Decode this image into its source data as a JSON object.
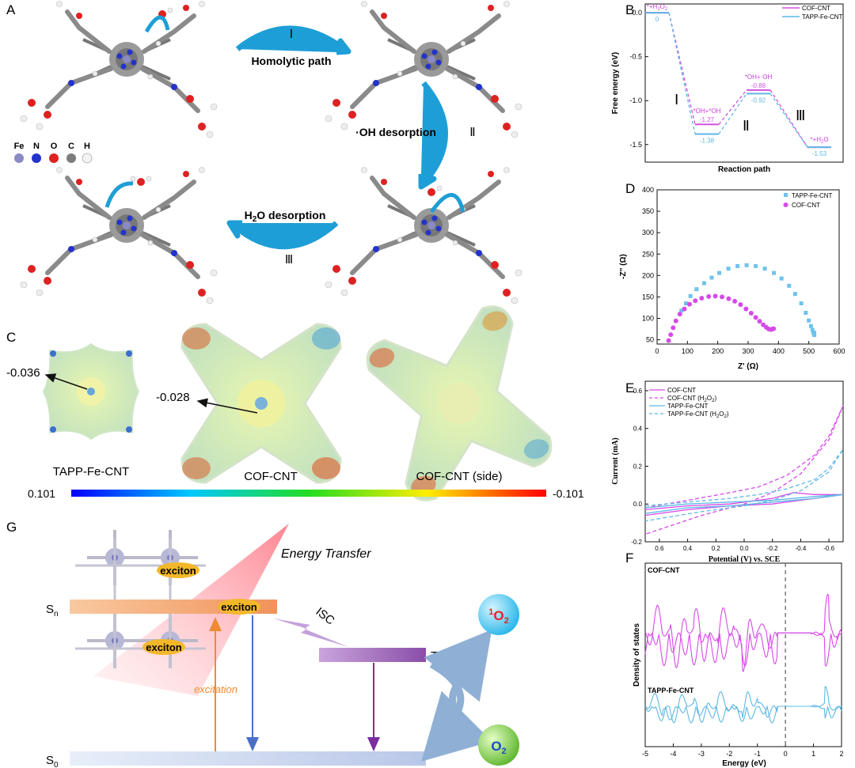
{
  "panel_letters": {
    "a": "A",
    "b": "B",
    "c": "C",
    "d": "D",
    "e": "E",
    "f": "F",
    "g": "G"
  },
  "panel_a": {
    "step1_numeral": "Ⅰ",
    "step1_label": "Homolytic path",
    "step2_numeral": "Ⅱ",
    "step2_label": "·OH desorption",
    "step3_numeral": "Ⅲ",
    "step3_label": "H",
    "step3_label_sub": "2",
    "step3_label_rest": "O desorption",
    "atom_legend": [
      {
        "symbol": "Fe",
        "color": "#8a8ac4"
      },
      {
        "symbol": "N",
        "color": "#2233cc"
      },
      {
        "symbol": "O",
        "color": "#dd2222"
      },
      {
        "symbol": "C",
        "color": "#7c7c7c"
      },
      {
        "symbol": "H",
        "color": "#f2f2f2"
      }
    ]
  },
  "panel_c": {
    "value_left": "-0.036",
    "value_mid": "-0.028",
    "label_left": "TAPP-Fe-CNT",
    "label_mid": "COF-CNT",
    "label_right": "COF-CNT (side)",
    "scale_min": "0.101",
    "scale_max": "-0.101"
  },
  "panel_g": {
    "sn": "S",
    "sn_sub": "n",
    "s0": "S",
    "s0_sub": "0",
    "tn": "T",
    "tn_sub": "n",
    "energy_transfer": "Energy Transfer",
    "isc": "ISC",
    "exciton": "exciton",
    "excitation": "excitation",
    "singlet_o2_sup": "1",
    "o2": "O",
    "o2_sub": "2",
    "colors": {
      "singlet": "#3ec7ef",
      "triplet": "#6cc23a",
      "sn_bar": "#f2a36b",
      "tn_bar": "#9b5fb5",
      "s0_bar": "#c8d4ee"
    }
  },
  "chart_data": [
    {
      "type": "line",
      "panel": "B",
      "xlabel": "Reaction path",
      "ylabel": "Free energy (eV)",
      "ylim": [
        -1.7,
        0.1
      ],
      "yticks": [
        "0.0",
        "-0.5",
        "-1.0",
        "-1.5"
      ],
      "step_numerals": [
        "Ⅰ",
        "Ⅱ",
        "Ⅲ"
      ],
      "legend_position": "top-right",
      "states": [
        {
          "label": "*+H2O2",
          "label_main": "*+H",
          "label_sub": "2",
          "label_o": "O",
          "label_sub2": "2"
        },
        {
          "label": "*OH+*OH",
          "label_main": "*OH+*OH"
        },
        {
          "label": "*OH+·OH",
          "label_main": "*OH+·OH"
        },
        {
          "label": "*+H2O",
          "label_main": "*+H",
          "label_sub": "2",
          "label_o": "O"
        }
      ],
      "series": [
        {
          "name": "COF-CNT",
          "color": "#d450e0",
          "values": [
            0,
            -1.27,
            -0.88,
            -1.53
          ],
          "value_labels": [
            "",
            "-1.27",
            "-0.88",
            ""
          ]
        },
        {
          "name": "TAPP-Fe-CNT",
          "color": "#5fb8e4",
          "values": [
            0,
            -1.38,
            -0.92,
            -1.53
          ],
          "value_labels": [
            "0",
            "-1.38",
            "-0.92",
            "-1.53"
          ]
        }
      ]
    },
    {
      "type": "scatter",
      "panel": "D",
      "xlabel": "Z' (Ω)",
      "ylabel": "-Z'' (Ω)",
      "xlim": [
        0,
        600
      ],
      "ylim": [
        40,
        400
      ],
      "xticks": [
        0,
        100,
        200,
        300,
        400,
        500,
        600
      ],
      "yticks": [
        50,
        100,
        150,
        200,
        250,
        300,
        350,
        400
      ],
      "legend_position": "top-right",
      "series": [
        {
          "name": "TAPP-Fe-CNT",
          "color": "#6ec3ea",
          "marker": "square",
          "x": [
            80,
            95,
            110,
            130,
            155,
            180,
            205,
            235,
            265,
            295,
            325,
            355,
            385,
            410,
            435,
            455,
            475,
            490,
            500,
            507,
            512,
            515,
            517,
            518,
            518
          ],
          "y": [
            118,
            135,
            152,
            168,
            182,
            195,
            206,
            216,
            222,
            224,
            222,
            216,
            206,
            193,
            176,
            157,
            135,
            113,
            95,
            82,
            73,
            67,
            63,
            61,
            66
          ]
        },
        {
          "name": "COF-CNT",
          "color": "#d64ae8",
          "marker": "circle",
          "x": [
            38,
            45,
            53,
            62,
            75,
            90,
            107,
            126,
            147,
            170,
            192,
            214,
            236,
            256,
            275,
            293,
            310,
            325,
            338,
            350,
            360,
            368,
            375,
            380,
            384
          ],
          "y": [
            48,
            62,
            78,
            94,
            110,
            122,
            133,
            141,
            147,
            151,
            152,
            150,
            146,
            140,
            132,
            122,
            112,
            102,
            93,
            85,
            79,
            75,
            74,
            75,
            76
          ]
        }
      ]
    },
    {
      "type": "line",
      "panel": "E",
      "xlabel": "Potential (V) vs. SCE",
      "ylabel": "Current (mA)",
      "xlim": [
        0.7,
        -0.7
      ],
      "ylim": [
        -0.2,
        0.65
      ],
      "xticks": [
        "0.6",
        "0.4",
        "0.2",
        "0.0",
        "-0.2",
        "-0.4",
        "-0.6"
      ],
      "yticks": [
        "0.6",
        "0.4",
        "0.2",
        "0.0",
        "-0.2"
      ],
      "legend_position": "top-left",
      "series": [
        {
          "name": "COF-CNT",
          "color": "#d64ae8",
          "dash": "solid",
          "x": [
            0.7,
            0.4,
            0.1,
            -0.2,
            -0.35,
            -0.5,
            -0.7,
            -0.5,
            -0.2,
            0.1,
            0.4,
            0.7
          ],
          "y": [
            -0.03,
            -0.01,
            0.0,
            0.03,
            0.06,
            0.05,
            0.05,
            0.03,
            0.0,
            -0.01,
            -0.03,
            -0.06
          ]
        },
        {
          "name": "COF-CNT (H2O2)",
          "name_main": "COF-CNT (H",
          "name_sub": "2",
          "name_o": "O",
          "name_sub2": "2",
          "name_end": ")",
          "color": "#d64ae8",
          "dash": "dashed",
          "x": [
            0.7,
            0.4,
            0.1,
            -0.1,
            -0.3,
            -0.5,
            -0.6,
            -0.7,
            -0.6,
            -0.4,
            -0.2,
            0.0,
            0.3,
            0.7
          ],
          "y": [
            -0.02,
            0.02,
            0.06,
            0.09,
            0.15,
            0.26,
            0.36,
            0.52,
            0.34,
            0.16,
            0.06,
            0.0,
            -0.06,
            -0.16
          ]
        },
        {
          "name": "TAPP-Fe-CNT",
          "color": "#5fb8e4",
          "dash": "solid",
          "x": [
            0.7,
            0.4,
            0.1,
            -0.2,
            -0.5,
            -0.7,
            -0.5,
            -0.2,
            0.1,
            0.4,
            0.7
          ],
          "y": [
            -0.02,
            0.0,
            0.01,
            0.02,
            0.04,
            0.05,
            0.03,
            0.01,
            -0.01,
            -0.02,
            -0.05
          ]
        },
        {
          "name": "TAPP-Fe-CNT (H2O2)",
          "name_main": "TAPP-Fe-CNT (H",
          "name_sub": "2",
          "name_o": "O",
          "name_sub2": "2",
          "name_end": ")",
          "color": "#5fb8e4",
          "dash": "dashed",
          "x": [
            0.7,
            0.4,
            0.1,
            -0.1,
            -0.3,
            -0.5,
            -0.6,
            -0.7,
            -0.6,
            -0.4,
            -0.2,
            0.0,
            0.3,
            0.7
          ],
          "y": [
            -0.01,
            0.01,
            0.03,
            0.05,
            0.08,
            0.13,
            0.19,
            0.29,
            0.17,
            0.07,
            0.02,
            -0.01,
            -0.04,
            -0.09
          ]
        }
      ]
    },
    {
      "type": "line",
      "panel": "F",
      "xlabel": "Energy (eV)",
      "ylabel": "Density of states",
      "xlim": [
        -5,
        2
      ],
      "xticks": [
        "-5",
        "-4",
        "-3",
        "-2",
        "-1",
        "0",
        "1",
        "2"
      ],
      "fermi_level": 0,
      "series": [
        {
          "name": "COF-CNT",
          "color": "#d64ae8",
          "baseline": 0.62
        },
        {
          "name": "TAPP-Fe-CNT",
          "color": "#5fb8e4",
          "baseline": 0.22
        }
      ]
    }
  ]
}
